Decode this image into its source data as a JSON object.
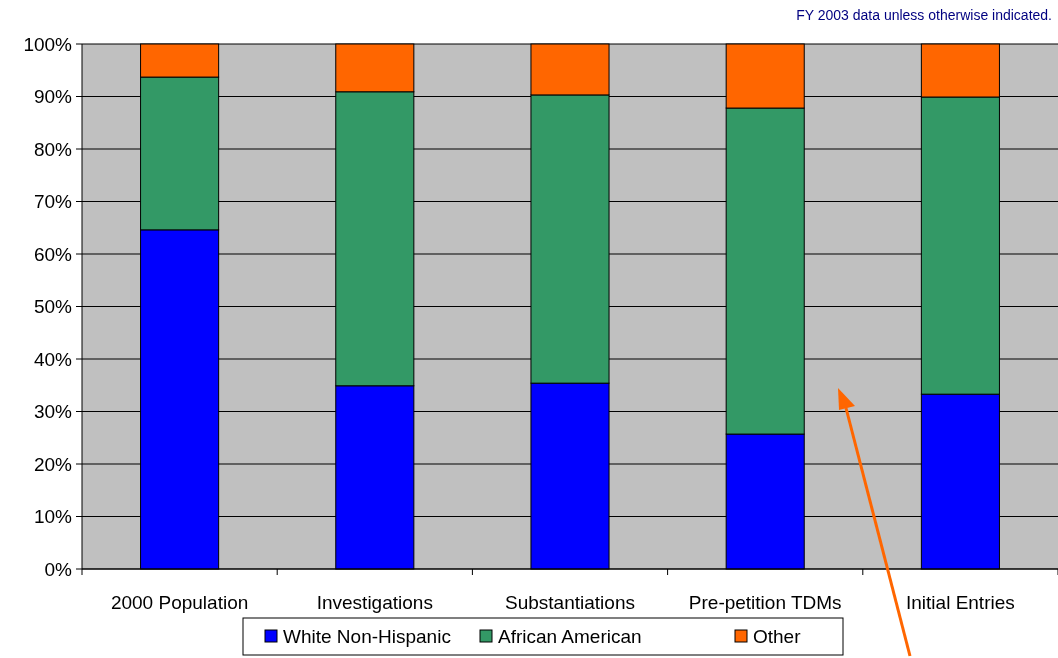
{
  "chart_data": {
    "type": "bar",
    "stacked": true,
    "categories": [
      "2000 Population",
      "Investigations",
      "Substantiations",
      "Pre-petition TDMs",
      "Initial Entries"
    ],
    "series": [
      {
        "name": "White Non-Hispanic",
        "color": "#0000ff",
        "values": [
          64.6,
          34.9,
          35.4,
          25.7,
          33.3
        ]
      },
      {
        "name": "African American",
        "color": "#339966",
        "values": [
          29.1,
          56.0,
          54.9,
          62.1,
          56.6
        ]
      },
      {
        "name": "Other",
        "color": "#ff6600",
        "values": [
          6.3,
          9.1,
          9.7,
          12.2,
          10.1
        ]
      }
    ],
    "ylim": [
      0,
      100
    ],
    "yticks": [
      {
        "value": 0,
        "label": "0%"
      },
      {
        "value": 10,
        "label": "10%"
      },
      {
        "value": 20,
        "label": "20%"
      },
      {
        "value": 30,
        "label": "30%"
      },
      {
        "value": 40,
        "label": "40%"
      },
      {
        "value": 50,
        "label": "50%"
      },
      {
        "value": 60,
        "label": "60%"
      },
      {
        "value": 70,
        "label": "70%"
      },
      {
        "value": 80,
        "label": "80%"
      },
      {
        "value": 90,
        "label": "90%"
      },
      {
        "value": 100,
        "label": "100%"
      }
    ],
    "grid": "y",
    "legend": "bottom",
    "annotations": [
      "FY 2003 data unless otherwise indicated."
    ]
  }
}
